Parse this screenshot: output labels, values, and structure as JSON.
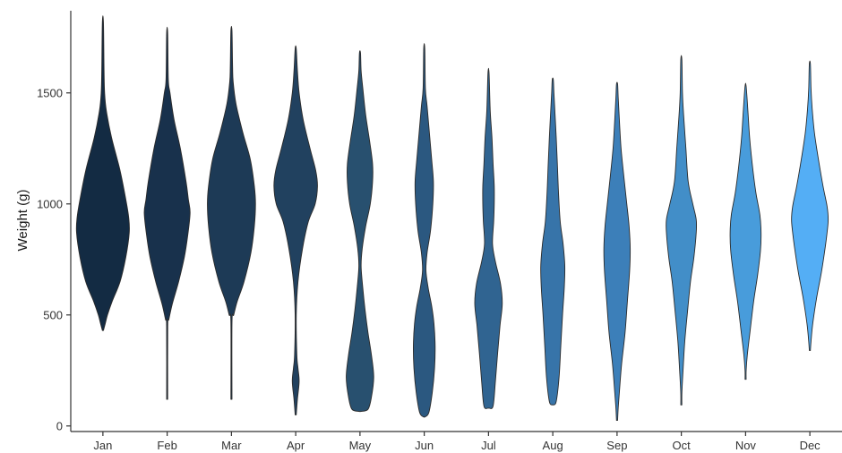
{
  "chart_data": {
    "type": "violin",
    "title": "",
    "xlabel": "",
    "ylabel": "Weight (g)",
    "ylim": [
      -25,
      1870
    ],
    "yticks": [
      0,
      500,
      1000,
      1500
    ],
    "grid": false,
    "legend": "none",
    "categories": [
      "Jan",
      "Feb",
      "Mar",
      "Apr",
      "May",
      "Jun",
      "Jul",
      "Aug",
      "Sep",
      "Oct",
      "Nov",
      "Dec"
    ],
    "colors": [
      "#132b43",
      "#18314c",
      "#1d3a56",
      "#21415f",
      "#28506f",
      "#2b5880",
      "#306491",
      "#3774a9",
      "#3c7fb9",
      "#428ec8",
      "#489cdb",
      "#54aef5"
    ],
    "series": [
      {
        "min": 430,
        "max": 1820,
        "profile": [
          [
            430,
            0
          ],
          [
            460,
            4
          ],
          [
            500,
            8
          ],
          [
            560,
            16
          ],
          [
            650,
            30
          ],
          [
            760,
            40
          ],
          [
            870,
            46
          ],
          [
            940,
            45
          ],
          [
            1020,
            40
          ],
          [
            1150,
            30
          ],
          [
            1300,
            15
          ],
          [
            1420,
            6
          ],
          [
            1500,
            3
          ],
          [
            1600,
            2
          ],
          [
            1820,
            0
          ]
        ]
      },
      {
        "min": 120,
        "max": 1770,
        "profile": [
          [
            120,
            0
          ],
          [
            450,
            1
          ],
          [
            480,
            3
          ],
          [
            550,
            9
          ],
          [
            650,
            20
          ],
          [
            760,
            30
          ],
          [
            860,
            36
          ],
          [
            960,
            40
          ],
          [
            1020,
            37
          ],
          [
            1100,
            33
          ],
          [
            1250,
            23
          ],
          [
            1380,
            12
          ],
          [
            1500,
            5
          ],
          [
            1560,
            2
          ],
          [
            1770,
            0
          ]
        ]
      },
      {
        "min": 120,
        "max": 1780,
        "profile": [
          [
            120,
            0
          ],
          [
            470,
            1
          ],
          [
            500,
            4
          ],
          [
            560,
            10
          ],
          [
            650,
            22
          ],
          [
            780,
            34
          ],
          [
            900,
            40
          ],
          [
            1000,
            42
          ],
          [
            1080,
            40
          ],
          [
            1200,
            33
          ],
          [
            1320,
            20
          ],
          [
            1450,
            8
          ],
          [
            1550,
            3
          ],
          [
            1620,
            2
          ],
          [
            1780,
            0
          ]
        ]
      },
      {
        "min": 50,
        "max": 1700,
        "profile": [
          [
            50,
            0
          ],
          [
            120,
            3
          ],
          [
            200,
            6
          ],
          [
            260,
            4
          ],
          [
            320,
            2
          ],
          [
            500,
            1
          ],
          [
            650,
            4
          ],
          [
            800,
            12
          ],
          [
            920,
            22
          ],
          [
            1000,
            34
          ],
          [
            1080,
            38
          ],
          [
            1150,
            35
          ],
          [
            1250,
            25
          ],
          [
            1380,
            13
          ],
          [
            1500,
            6
          ],
          [
            1600,
            3
          ],
          [
            1700,
            0
          ]
        ]
      },
      {
        "min": 65,
        "max": 1680,
        "profile": [
          [
            65,
            0
          ],
          [
            75,
            14
          ],
          [
            130,
            20
          ],
          [
            220,
            24
          ],
          [
            320,
            20
          ],
          [
            420,
            14
          ],
          [
            520,
            9
          ],
          [
            620,
            5
          ],
          [
            720,
            2
          ],
          [
            800,
            4
          ],
          [
            900,
            10
          ],
          [
            1000,
            18
          ],
          [
            1100,
            22
          ],
          [
            1180,
            22
          ],
          [
            1280,
            17
          ],
          [
            1400,
            10
          ],
          [
            1520,
            5
          ],
          [
            1600,
            2
          ],
          [
            1680,
            0
          ]
        ]
      },
      {
        "min": 40,
        "max": 1700,
        "profile": [
          [
            40,
            0
          ],
          [
            60,
            8
          ],
          [
            150,
            14
          ],
          [
            260,
            18
          ],
          [
            360,
            19
          ],
          [
            460,
            17
          ],
          [
            540,
            13
          ],
          [
            620,
            7
          ],
          [
            700,
            3
          ],
          [
            780,
            5
          ],
          [
            880,
            11
          ],
          [
            1000,
            15
          ],
          [
            1100,
            16
          ],
          [
            1200,
            13
          ],
          [
            1320,
            9
          ],
          [
            1440,
            5
          ],
          [
            1520,
            2
          ],
          [
            1700,
            0
          ]
        ]
      },
      {
        "min": 80,
        "max": 1590,
        "profile": [
          [
            80,
            0
          ],
          [
            90,
            8
          ],
          [
            200,
            12
          ],
          [
            330,
            16
          ],
          [
            450,
            20
          ],
          [
            550,
            24
          ],
          [
            640,
            21
          ],
          [
            740,
            12
          ],
          [
            820,
            7
          ],
          [
            920,
            9
          ],
          [
            1000,
            10
          ],
          [
            1080,
            10
          ],
          [
            1180,
            8
          ],
          [
            1300,
            6
          ],
          [
            1420,
            3
          ],
          [
            1590,
            0
          ]
        ]
      },
      {
        "min": 95,
        "max": 1560,
        "profile": [
          [
            95,
            0
          ],
          [
            110,
            6
          ],
          [
            220,
            11
          ],
          [
            360,
            14
          ],
          [
            500,
            17
          ],
          [
            620,
            20
          ],
          [
            720,
            21
          ],
          [
            820,
            18
          ],
          [
            920,
            13
          ],
          [
            1050,
            10
          ],
          [
            1180,
            8
          ],
          [
            1300,
            6
          ],
          [
            1400,
            4
          ],
          [
            1500,
            2
          ],
          [
            1560,
            0
          ]
        ]
      },
      {
        "min": 25,
        "max": 1540,
        "profile": [
          [
            25,
            0
          ],
          [
            80,
            2
          ],
          [
            150,
            4
          ],
          [
            280,
            8
          ],
          [
            420,
            14
          ],
          [
            560,
            18
          ],
          [
            700,
            22
          ],
          [
            800,
            23
          ],
          [
            900,
            21
          ],
          [
            1000,
            17
          ],
          [
            1120,
            12
          ],
          [
            1250,
            7
          ],
          [
            1380,
            4
          ],
          [
            1480,
            2
          ],
          [
            1540,
            0
          ]
        ]
      },
      {
        "min": 95,
        "max": 1650,
        "profile": [
          [
            95,
            0
          ],
          [
            150,
            1
          ],
          [
            250,
            3
          ],
          [
            380,
            6
          ],
          [
            520,
            11
          ],
          [
            650,
            16
          ],
          [
            760,
            22
          ],
          [
            870,
            26
          ],
          [
            930,
            26
          ],
          [
            1000,
            20
          ],
          [
            1100,
            12
          ],
          [
            1250,
            8
          ],
          [
            1400,
            4
          ],
          [
            1500,
            2
          ],
          [
            1650,
            0
          ]
        ]
      },
      {
        "min": 210,
        "max": 1530,
        "profile": [
          [
            210,
            0
          ],
          [
            250,
            1
          ],
          [
            320,
            3
          ],
          [
            430,
            8
          ],
          [
            560,
            14
          ],
          [
            680,
            21
          ],
          [
            790,
            26
          ],
          [
            870,
            27
          ],
          [
            950,
            25
          ],
          [
            1050,
            18
          ],
          [
            1170,
            12
          ],
          [
            1300,
            7
          ],
          [
            1420,
            4
          ],
          [
            1530,
            0
          ]
        ]
      },
      {
        "min": 340,
        "max": 1630,
        "profile": [
          [
            340,
            0
          ],
          [
            380,
            2
          ],
          [
            460,
            5
          ],
          [
            580,
            12
          ],
          [
            690,
            20
          ],
          [
            790,
            26
          ],
          [
            870,
            30
          ],
          [
            930,
            32
          ],
          [
            990,
            30
          ],
          [
            1080,
            23
          ],
          [
            1200,
            15
          ],
          [
            1320,
            8
          ],
          [
            1430,
            4
          ],
          [
            1520,
            2
          ],
          [
            1630,
            0
          ]
        ]
      }
    ]
  }
}
